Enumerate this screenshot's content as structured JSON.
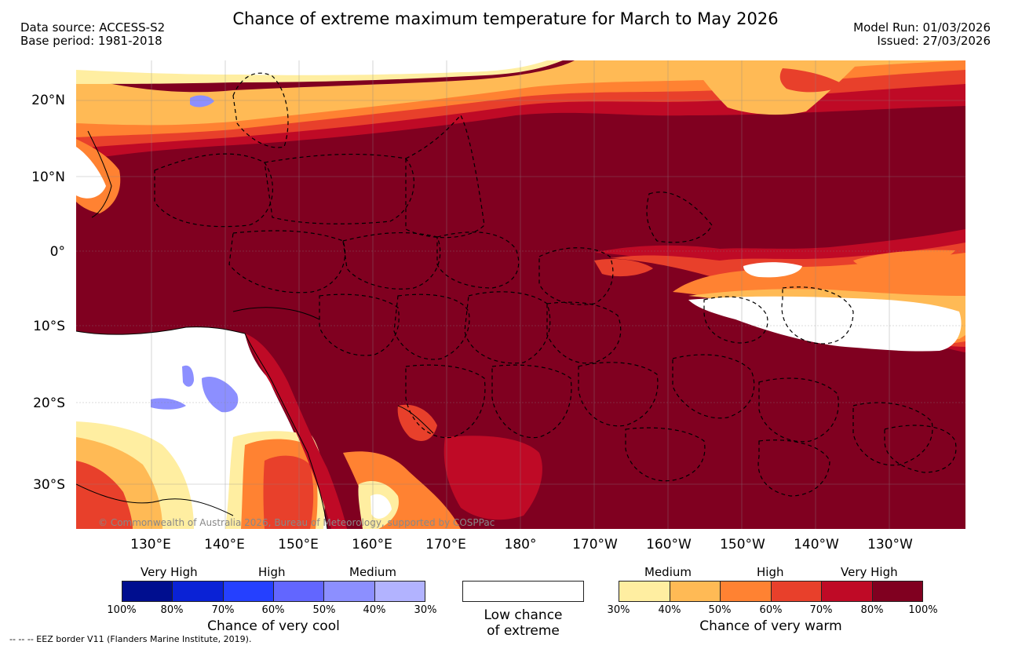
{
  "header": {
    "title": "Chance of extreme maximum temperature for March to May 2026",
    "data_source": "Data source: ACCESS-S2",
    "base_period": "Base period: 1981-2018",
    "model_run": "Model Run: 01/03/2026",
    "issued": "Issued: 27/03/2026"
  },
  "map": {
    "lat_labels": [
      "20°N",
      "10°N",
      "0°",
      "10°S",
      "20°S",
      "30°S"
    ],
    "lon_labels": [
      "130°E",
      "140°E",
      "150°E",
      "160°E",
      "170°E",
      "180°",
      "170°W",
      "160°W",
      "150°W",
      "140°W",
      "130°W"
    ],
    "credit": "© Commonwealth of Australia 2026, Bureau of Meteorology, supported by COSPPac"
  },
  "legend": {
    "cool": {
      "labels": [
        "Very High",
        "High",
        "Medium"
      ],
      "ticks": [
        "100%",
        "80%",
        "70%",
        "60%",
        "50%",
        "40%",
        "30%"
      ],
      "colors": [
        "#000e8f",
        "#0a22d6",
        "#2540ff",
        "#6266ff",
        "#8c8fff",
        "#b2b3ff"
      ],
      "caption": "Chance of very cool"
    },
    "low": {
      "caption_line1": "Low chance",
      "caption_line2": "of extreme"
    },
    "warm": {
      "labels": [
        "Medium",
        "High",
        "Very High"
      ],
      "ticks": [
        "30%",
        "40%",
        "50%",
        "60%",
        "70%",
        "80%",
        "100%"
      ],
      "colors": [
        "#ffeea1",
        "#ffba55",
        "#ff8232",
        "#e8402b",
        "#bf0a26",
        "#800020"
      ],
      "caption": "Chance of very warm"
    }
  },
  "footer": {
    "eez_note": "--  --  -- EEZ border V11 (Flanders Marine Institute, 2019)."
  }
}
